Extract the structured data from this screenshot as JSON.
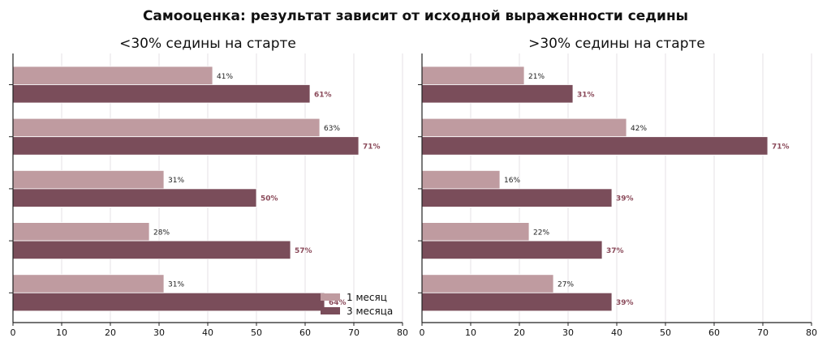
{
  "title": "Самооценка: результат зависит от исходной выраженности седины",
  "colors": {
    "month1": "#bf9ba0",
    "month3": "#7a4d5a",
    "grid": "#e6e2e6",
    "axis": "#222222",
    "label3": "#8a4a5a"
  },
  "legend": {
    "month1": "1 месяц",
    "month3": "3 месяца"
  },
  "chart_data": [
    {
      "type": "bar",
      "orientation": "horizontal",
      "title": "<30% седины на старте",
      "xlim": [
        0,
        80
      ],
      "xticks": [
        0,
        10,
        20,
        30,
        40,
        50,
        60,
        70,
        80
      ],
      "grid": "vertical",
      "legend_position": "lower-right",
      "series": [
        {
          "name": "1 месяц",
          "values": [
            41,
            63,
            31,
            28,
            31
          ],
          "labels": [
            "41%",
            "63%",
            "31%",
            "28%",
            "31%"
          ]
        },
        {
          "name": "3 месяца",
          "values": [
            61,
            71,
            50,
            57,
            64
          ],
          "labels": [
            "61%",
            "71%",
            "50%",
            "57%",
            "64%"
          ]
        }
      ]
    },
    {
      "type": "bar",
      "orientation": "horizontal",
      "title": ">30% седины на старте",
      "xlim": [
        0,
        80
      ],
      "xticks": [
        0,
        10,
        20,
        30,
        40,
        50,
        60,
        70,
        80
      ],
      "grid": "vertical",
      "series": [
        {
          "name": "1 месяц",
          "values": [
            21,
            42,
            16,
            22,
            27
          ],
          "labels": [
            "21%",
            "42%",
            "16%",
            "22%",
            "27%"
          ]
        },
        {
          "name": "3 месяца",
          "values": [
            31,
            71,
            39,
            37,
            39
          ],
          "labels": [
            "31%",
            "71%",
            "39%",
            "37%",
            "39%"
          ]
        }
      ]
    }
  ]
}
